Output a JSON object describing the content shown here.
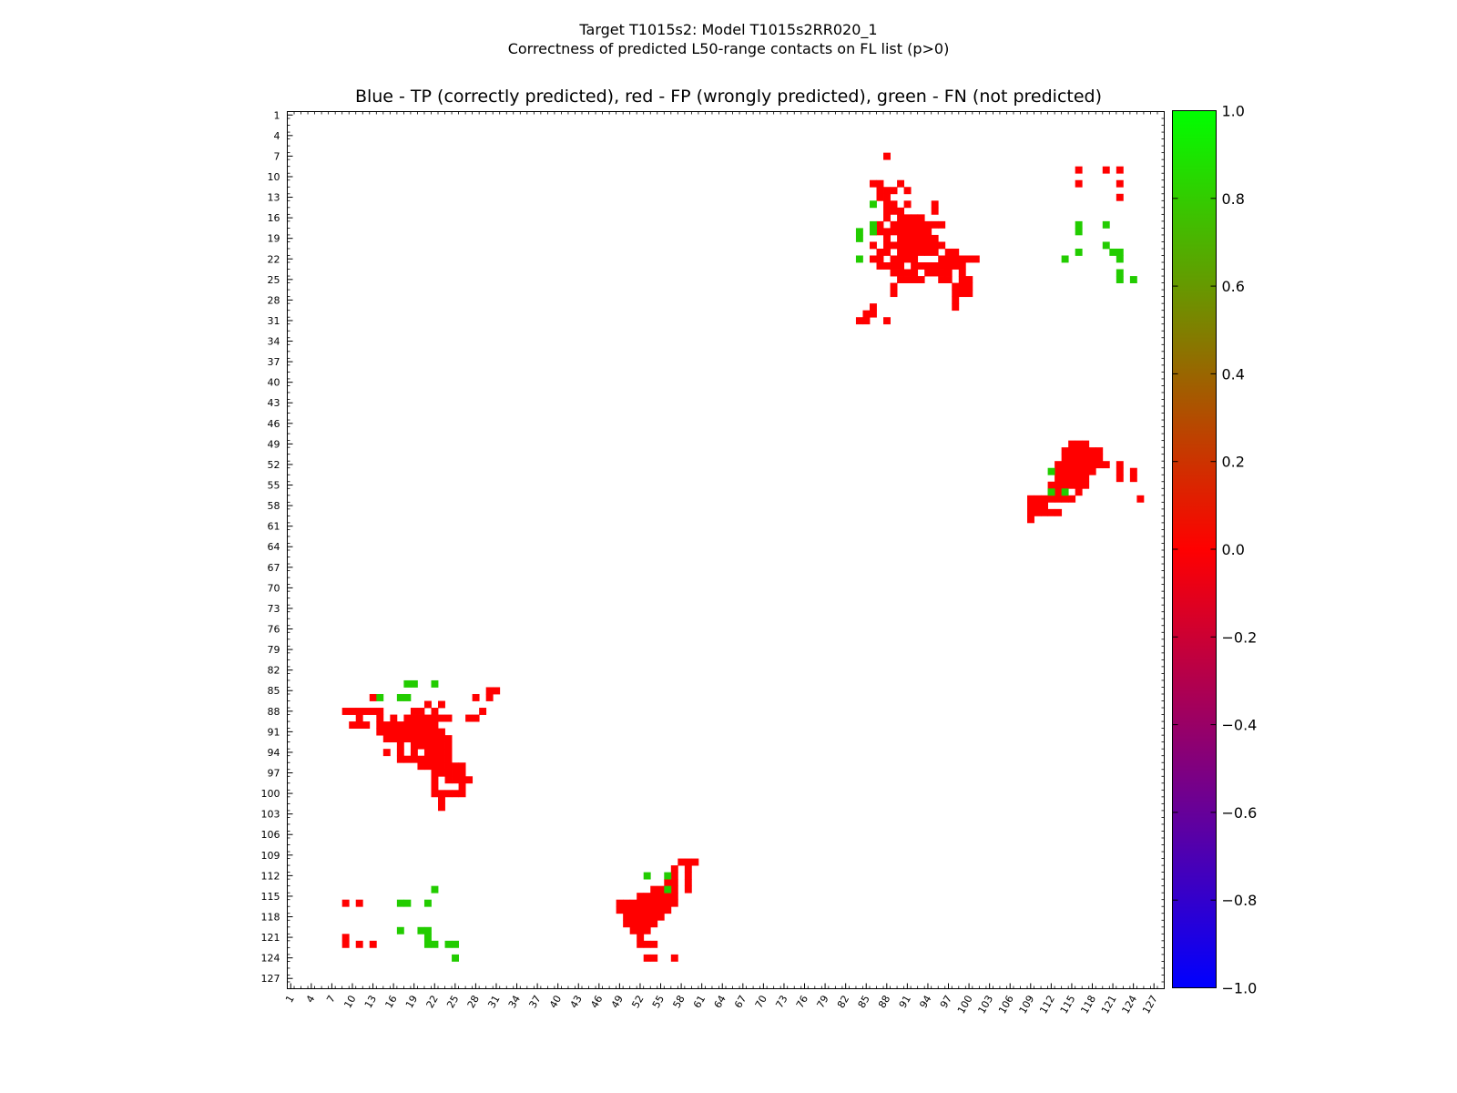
{
  "figure": {
    "title_line1": "Target T1015s2: Model T1015s2RR020_1",
    "title_line2": "Correctness of predicted L50-range contacts on FL list (p>0)",
    "plot_title": "Blue - TP (correctly predicted), red - FP (wrongly predicted), green - FN (not predicted)"
  },
  "colors": {
    "fp": "#ff0000",
    "fn": "#22cc00",
    "tp": "#0000ff",
    "colorbar_stops": [
      "#0000ff",
      "#ff0000",
      "#00ff00"
    ]
  },
  "chart_data": {
    "type": "heatmap",
    "xlim": [
      1,
      128
    ],
    "ylim": [
      1,
      128
    ],
    "x_ticks": [
      1,
      4,
      7,
      10,
      13,
      16,
      19,
      22,
      25,
      28,
      31,
      34,
      37,
      40,
      43,
      46,
      49,
      52,
      55,
      58,
      61,
      64,
      67,
      70,
      73,
      76,
      79,
      82,
      85,
      88,
      91,
      94,
      97,
      100,
      103,
      106,
      109,
      112,
      115,
      118,
      121,
      124,
      127
    ],
    "y_ticks": [
      1,
      4,
      7,
      10,
      13,
      16,
      19,
      22,
      25,
      28,
      31,
      34,
      37,
      40,
      43,
      46,
      49,
      52,
      55,
      58,
      61,
      64,
      67,
      70,
      73,
      76,
      79,
      82,
      85,
      88,
      91,
      94,
      97,
      100,
      103,
      106,
      109,
      112,
      115,
      118,
      121,
      124,
      127
    ],
    "y_inverted": true,
    "colorbar": {
      "min": -1.0,
      "max": 1.0,
      "ticks": [
        "1.0",
        "0.8",
        "0.6",
        "0.4",
        "0.2",
        "0.0",
        "−0.2",
        "−0.4",
        "−0.6",
        "−0.8",
        "−1.0"
      ]
    },
    "legend": {
      "tp": -1,
      "fp": 0,
      "fn": 1
    },
    "contacts_fp": [
      [
        88,
        7
      ],
      [
        86,
        11
      ],
      [
        90,
        11
      ],
      [
        88,
        12
      ],
      [
        89,
        12
      ],
      [
        91,
        12
      ],
      [
        96,
        22
      ],
      [
        97,
        22
      ],
      [
        98,
        22
      ],
      [
        99,
        22
      ],
      [
        100,
        22
      ],
      [
        101,
        22
      ],
      [
        92,
        20
      ],
      [
        93,
        20
      ],
      [
        94,
        20
      ],
      [
        95,
        20
      ],
      [
        96,
        20
      ],
      [
        94,
        21
      ],
      [
        95,
        21
      ],
      [
        97,
        21
      ],
      [
        98,
        21
      ],
      [
        90,
        25
      ],
      [
        91,
        25
      ],
      [
        92,
        25
      ],
      [
        93,
        25
      ],
      [
        99,
        24
      ],
      [
        99,
        23
      ],
      [
        98,
        23
      ],
      [
        97,
        23
      ],
      [
        90,
        19
      ],
      [
        91,
        19
      ],
      [
        92,
        19
      ],
      [
        93,
        19
      ],
      [
        94,
        19
      ],
      [
        95,
        19
      ],
      [
        89,
        18
      ],
      [
        90,
        18
      ],
      [
        91,
        18
      ],
      [
        92,
        18
      ],
      [
        93,
        18
      ],
      [
        94,
        18
      ],
      [
        89,
        17
      ],
      [
        90,
        17
      ],
      [
        91,
        17
      ],
      [
        92,
        17
      ],
      [
        93,
        17
      ],
      [
        94,
        17
      ],
      [
        95,
        17
      ],
      [
        96,
        17
      ],
      [
        91,
        16
      ],
      [
        92,
        16
      ],
      [
        93,
        16
      ],
      [
        95,
        15
      ],
      [
        95,
        14
      ],
      [
        87,
        21
      ],
      [
        88,
        21
      ],
      [
        90,
        21
      ],
      [
        91,
        21
      ],
      [
        92,
        21
      ],
      [
        93,
        21
      ],
      [
        89,
        22
      ],
      [
        90,
        22
      ],
      [
        91,
        22
      ],
      [
        92,
        22
      ],
      [
        89,
        23
      ],
      [
        90,
        23
      ],
      [
        92,
        23
      ],
      [
        93,
        23
      ],
      [
        94,
        23
      ],
      [
        95,
        23
      ],
      [
        96,
        23
      ],
      [
        97,
        23
      ],
      [
        89,
        24
      ],
      [
        90,
        24
      ],
      [
        91,
        24
      ],
      [
        94,
        24
      ],
      [
        95,
        24
      ],
      [
        96,
        24
      ],
      [
        89,
        20
      ],
      [
        90,
        20
      ],
      [
        91,
        20
      ],
      [
        85,
        31
      ],
      [
        84,
        31
      ],
      [
        85,
        30
      ],
      [
        86,
        30
      ],
      [
        89,
        27
      ],
      [
        89,
        26
      ],
      [
        88,
        31
      ],
      [
        86,
        29
      ],
      [
        87,
        11
      ],
      [
        87,
        12
      ],
      [
        87,
        13
      ],
      [
        88,
        13
      ],
      [
        88,
        14
      ],
      [
        89,
        14
      ],
      [
        89,
        15
      ],
      [
        90,
        15
      ],
      [
        90,
        16
      ],
      [
        91,
        14
      ],
      [
        99,
        25
      ],
      [
        100,
        25
      ],
      [
        99,
        26
      ],
      [
        100,
        26
      ],
      [
        98,
        27
      ],
      [
        99,
        27
      ],
      [
        100,
        27
      ],
      [
        98,
        28
      ],
      [
        98,
        29
      ],
      [
        98,
        26
      ],
      [
        97,
        24
      ],
      [
        97,
        25
      ],
      [
        92,
        24
      ],
      [
        96,
        25
      ],
      [
        88,
        15
      ],
      [
        88,
        16
      ],
      [
        87,
        17
      ],
      [
        86,
        18
      ],
      [
        87,
        18
      ],
      [
        88,
        18
      ],
      [
        88,
        19
      ],
      [
        88,
        20
      ],
      [
        86,
        20
      ],
      [
        86,
        22
      ],
      [
        87,
        22
      ],
      [
        87,
        23
      ],
      [
        88,
        23
      ],
      [
        11,
        88
      ],
      [
        11,
        89
      ],
      [
        13,
        86
      ],
      [
        13,
        88
      ],
      [
        9,
        88
      ],
      [
        10,
        88
      ],
      [
        10,
        90
      ],
      [
        11,
        90
      ],
      [
        12,
        88
      ],
      [
        12,
        90
      ],
      [
        14,
        88
      ],
      [
        14,
        89
      ],
      [
        14,
        90
      ],
      [
        14,
        91
      ],
      [
        15,
        90
      ],
      [
        15,
        91
      ],
      [
        16,
        89
      ],
      [
        16,
        90
      ],
      [
        16,
        91
      ],
      [
        16,
        92
      ],
      [
        17,
        90
      ],
      [
        17,
        91
      ],
      [
        17,
        92
      ],
      [
        18,
        89
      ],
      [
        18,
        90
      ],
      [
        18,
        91
      ],
      [
        18,
        92
      ],
      [
        19,
        88
      ],
      [
        19,
        89
      ],
      [
        19,
        90
      ],
      [
        19,
        91
      ],
      [
        19,
        92
      ],
      [
        19,
        93
      ],
      [
        19,
        94
      ],
      [
        20,
        88
      ],
      [
        20,
        89
      ],
      [
        20,
        90
      ],
      [
        20,
        91
      ],
      [
        20,
        92
      ],
      [
        20,
        93
      ],
      [
        21,
        87
      ],
      [
        21,
        89
      ],
      [
        21,
        90
      ],
      [
        21,
        91
      ],
      [
        21,
        92
      ],
      [
        21,
        93
      ],
      [
        21,
        94
      ],
      [
        22,
        88
      ],
      [
        22,
        89
      ],
      [
        22,
        90
      ],
      [
        22,
        91
      ],
      [
        22,
        92
      ],
      [
        22,
        93
      ],
      [
        22,
        94
      ],
      [
        22,
        95
      ],
      [
        22,
        96
      ],
      [
        22,
        97
      ],
      [
        22,
        98
      ],
      [
        22,
        99
      ],
      [
        22,
        100
      ],
      [
        23,
        87
      ],
      [
        23,
        89
      ],
      [
        23,
        91
      ],
      [
        23,
        92
      ],
      [
        23,
        93
      ],
      [
        23,
        94
      ],
      [
        23,
        95
      ],
      [
        23,
        96
      ],
      [
        23,
        97
      ],
      [
        23,
        100
      ],
      [
        23,
        101
      ],
      [
        23,
        102
      ],
      [
        24,
        89
      ],
      [
        24,
        92
      ],
      [
        24,
        93
      ],
      [
        24,
        94
      ],
      [
        24,
        96
      ],
      [
        24,
        98
      ],
      [
        24,
        100
      ],
      [
        25,
        96
      ],
      [
        25,
        98
      ],
      [
        25,
        100
      ],
      [
        26,
        96
      ],
      [
        26,
        98
      ],
      [
        26,
        99
      ],
      [
        26,
        100
      ],
      [
        27,
        98
      ],
      [
        27,
        89
      ],
      [
        28,
        89
      ],
      [
        29,
        88
      ],
      [
        30,
        86
      ],
      [
        30,
        85
      ],
      [
        31,
        85
      ],
      [
        28,
        86
      ],
      [
        17,
        93
      ],
      [
        15,
        92
      ],
      [
        15,
        94
      ],
      [
        17,
        94
      ],
      [
        17,
        95
      ],
      [
        18,
        95
      ],
      [
        19,
        95
      ],
      [
        20,
        95
      ],
      [
        21,
        95
      ],
      [
        21,
        96
      ],
      [
        20,
        96
      ],
      [
        24,
        95
      ],
      [
        24,
        97
      ],
      [
        25,
        97
      ],
      [
        26,
        97
      ],
      [
        115,
        49
      ],
      [
        116,
        49
      ],
      [
        117,
        49
      ],
      [
        114,
        50
      ],
      [
        115,
        50
      ],
      [
        116,
        50
      ],
      [
        117,
        50
      ],
      [
        118,
        50
      ],
      [
        119,
        50
      ],
      [
        114,
        51
      ],
      [
        115,
        51
      ],
      [
        116,
        51
      ],
      [
        117,
        51
      ],
      [
        118,
        51
      ],
      [
        119,
        51
      ],
      [
        113,
        52
      ],
      [
        114,
        52
      ],
      [
        115,
        52
      ],
      [
        116,
        52
      ],
      [
        117,
        52
      ],
      [
        118,
        52
      ],
      [
        119,
        52
      ],
      [
        120,
        52
      ],
      [
        113,
        53
      ],
      [
        114,
        53
      ],
      [
        115,
        53
      ],
      [
        116,
        53
      ],
      [
        117,
        53
      ],
      [
        118,
        53
      ],
      [
        114,
        54
      ],
      [
        115,
        54
      ],
      [
        116,
        54
      ],
      [
        117,
        54
      ],
      [
        115,
        55
      ],
      [
        116,
        55
      ],
      [
        117,
        55
      ],
      [
        112,
        55
      ],
      [
        113,
        55
      ],
      [
        113,
        56
      ],
      [
        116,
        56
      ],
      [
        112,
        57
      ],
      [
        113,
        57
      ],
      [
        111,
        57
      ],
      [
        110,
        57
      ],
      [
        109,
        57
      ],
      [
        114,
        57
      ],
      [
        115,
        57
      ],
      [
        109,
        58
      ],
      [
        110,
        58
      ],
      [
        111,
        58
      ],
      [
        109,
        59
      ],
      [
        110,
        59
      ],
      [
        111,
        59
      ],
      [
        112,
        59
      ],
      [
        113,
        59
      ],
      [
        109,
        60
      ],
      [
        122,
        52
      ],
      [
        122,
        53
      ],
      [
        124,
        53
      ],
      [
        124,
        54
      ],
      [
        122,
        54
      ],
      [
        125,
        57
      ],
      [
        113,
        54
      ],
      [
        114,
        55
      ],
      [
        112,
        56
      ],
      [
        49,
        116
      ],
      [
        50,
        116
      ],
      [
        51,
        116
      ],
      [
        52,
        116
      ],
      [
        53,
        116
      ],
      [
        54,
        116
      ],
      [
        55,
        116
      ],
      [
        49,
        117
      ],
      [
        50,
        117
      ],
      [
        51,
        117
      ],
      [
        52,
        117
      ],
      [
        53,
        117
      ],
      [
        54,
        117
      ],
      [
        55,
        117
      ],
      [
        56,
        117
      ],
      [
        50,
        118
      ],
      [
        51,
        118
      ],
      [
        52,
        118
      ],
      [
        53,
        118
      ],
      [
        54,
        118
      ],
      [
        55,
        118
      ],
      [
        50,
        119
      ],
      [
        51,
        119
      ],
      [
        52,
        119
      ],
      [
        53,
        119
      ],
      [
        54,
        119
      ],
      [
        51,
        120
      ],
      [
        52,
        120
      ],
      [
        53,
        120
      ],
      [
        52,
        121
      ],
      [
        52,
        122
      ],
      [
        53,
        122
      ],
      [
        54,
        122
      ],
      [
        53,
        124
      ],
      [
        54,
        124
      ],
      [
        57,
        124
      ],
      [
        54,
        114
      ],
      [
        55,
        114
      ],
      [
        56,
        114
      ],
      [
        57,
        114
      ],
      [
        56,
        115
      ],
      [
        57,
        115
      ],
      [
        56,
        116
      ],
      [
        57,
        116
      ],
      [
        55,
        115
      ],
      [
        53,
        115
      ],
      [
        54,
        115
      ],
      [
        52,
        116
      ],
      [
        52,
        115
      ],
      [
        57,
        111
      ],
      [
        57,
        112
      ],
      [
        57,
        113
      ],
      [
        58,
        110
      ],
      [
        59,
        110
      ],
      [
        60,
        110
      ],
      [
        59,
        111
      ],
      [
        59,
        112
      ],
      [
        59,
        113
      ],
      [
        59,
        114
      ],
      [
        56,
        113
      ],
      [
        116,
        9
      ],
      [
        120,
        9
      ],
      [
        122,
        9
      ],
      [
        116,
        11
      ],
      [
        122,
        11
      ],
      [
        122,
        13
      ],
      [
        9,
        116
      ],
      [
        11,
        116
      ],
      [
        9,
        121
      ],
      [
        9,
        122
      ],
      [
        11,
        122
      ],
      [
        13,
        122
      ]
    ],
    "contacts_fn": [
      [
        86,
        14
      ],
      [
        84,
        18
      ],
      [
        84,
        19
      ],
      [
        86,
        17
      ],
      [
        86,
        18
      ],
      [
        84,
        22
      ],
      [
        116,
        17
      ],
      [
        116,
        18
      ],
      [
        120,
        17
      ],
      [
        114,
        22
      ],
      [
        116,
        21
      ],
      [
        120,
        20
      ],
      [
        121,
        21
      ],
      [
        122,
        21
      ],
      [
        122,
        22
      ],
      [
        122,
        24
      ],
      [
        122,
        25
      ],
      [
        124,
        25
      ],
      [
        112,
        53
      ],
      [
        114,
        56
      ],
      [
        112,
        56
      ],
      [
        18,
        84
      ],
      [
        19,
        84
      ],
      [
        22,
        84
      ],
      [
        14,
        86
      ],
      [
        17,
        86
      ],
      [
        18,
        86
      ],
      [
        53,
        112
      ],
      [
        56,
        112
      ],
      [
        56,
        114
      ],
      [
        22,
        114
      ],
      [
        17,
        116
      ],
      [
        18,
        116
      ],
      [
        21,
        116
      ],
      [
        17,
        120
      ],
      [
        20,
        120
      ],
      [
        21,
        120
      ],
      [
        21,
        121
      ],
      [
        21,
        122
      ],
      [
        22,
        122
      ],
      [
        24,
        122
      ],
      [
        25,
        122
      ],
      [
        25,
        124
      ]
    ]
  }
}
